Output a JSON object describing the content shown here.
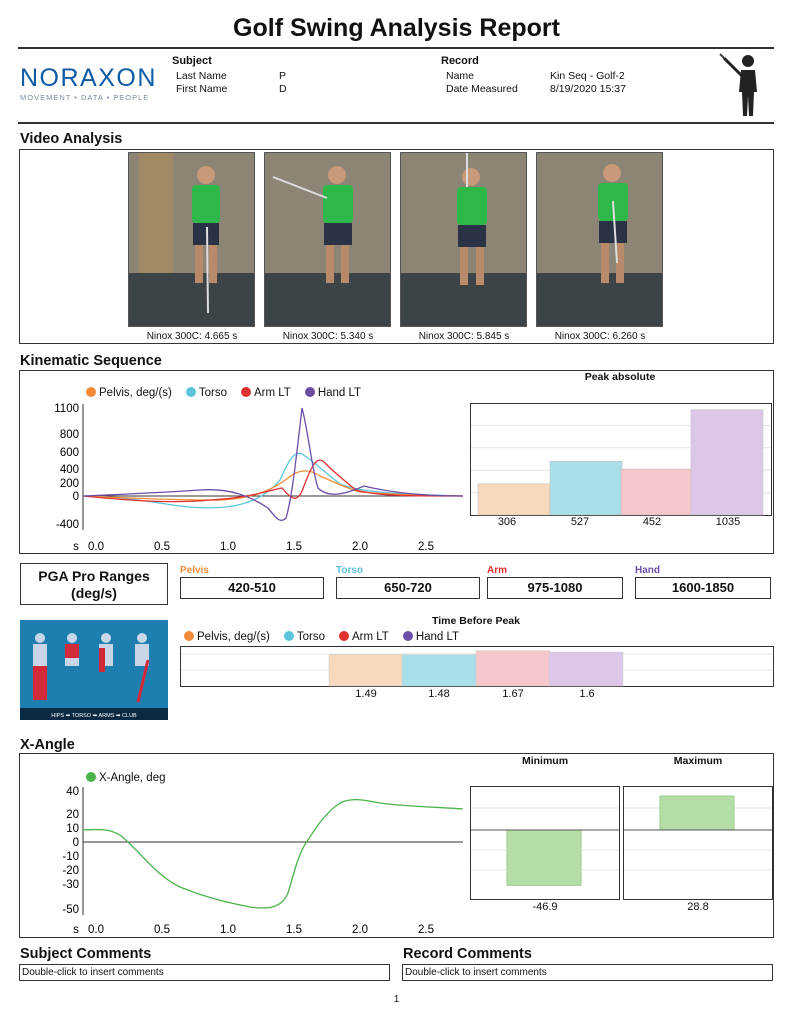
{
  "title": "Golf Swing Analysis Report",
  "logo": {
    "name": "NORAXON",
    "tagline": "MOVEMENT • DATA • PEOPLE"
  },
  "subject": {
    "heading": "Subject",
    "last_name_label": "Last Name",
    "last_name": "P",
    "first_name_label": "First Name",
    "first_name": "D"
  },
  "record": {
    "heading": "Record",
    "name_label": "Name",
    "name": "Kin Seq - Golf-2",
    "date_label": "Date Measured",
    "date": "8/19/2020 15:37"
  },
  "video": {
    "section": "Video Analysis",
    "captions": [
      "Ninox 300C: 4.665 s",
      "Ninox 300C: 5.340 s",
      "Ninox 300C: 5.845 s",
      "Ninox 300C: 6.260 s"
    ]
  },
  "kinematic": {
    "section": "Kinematic Sequence",
    "legend": [
      "Pelvis, deg/(s)",
      "Torso",
      "Arm LT",
      "Hand LT"
    ],
    "colors": [
      "#f28c38",
      "#5bc4dd",
      "#e2302f",
      "#6b4da8"
    ],
    "peak_title": "Peak absolute",
    "peak_values": [
      "306",
      "527",
      "452",
      "1035"
    ]
  },
  "kin_chart": {
    "type": "line",
    "x_ticks": [
      "0.0",
      "0.5",
      "1.0",
      "1.5",
      "2.0",
      "2.5"
    ],
    "x_unit": "s",
    "y_ticks": [
      "1100",
      "800",
      "600",
      "400",
      "200",
      "0",
      "-400"
    ]
  },
  "peak_chart": {
    "type": "bar",
    "values": [
      306,
      527,
      452,
      1035
    ],
    "ylim": [
      0,
      1100
    ],
    "colors": [
      "#f8d9bd",
      "#a9dfe8",
      "#f6c6cb",
      "#dcc7e8"
    ]
  },
  "pga": {
    "title_line1": "PGA Pro Ranges",
    "title_line2": "(deg/s)",
    "ranges": [
      {
        "label": "Pelvis",
        "value": "420-510",
        "color": "#f28c38"
      },
      {
        "label": "Torso",
        "value": "650-720",
        "color": "#5bc4dd"
      },
      {
        "label": "Arm",
        "value": "975-1080",
        "color": "#e2302f"
      },
      {
        "label": "Hand",
        "value": "1600-1850",
        "color": "#6b4da8"
      }
    ]
  },
  "timing": {
    "title": "Time Before Peak",
    "legend": [
      "Pelvis, deg/(s)",
      "Torso",
      "Arm LT",
      "Hand LT"
    ],
    "values": [
      "1.49",
      "1.48",
      "1.67",
      "1.6"
    ],
    "thumb_caption": "HIPS ➡ TORSO ➡ ARMS ➡ CLUB"
  },
  "timing_chart": {
    "type": "bar",
    "values": [
      1.49,
      1.48,
      1.67,
      1.6
    ]
  },
  "xangle": {
    "section": "X-Angle",
    "legend": "X-Angle, deg",
    "color": "#4ab34a",
    "min_title": "Minimum",
    "max_title": "Maximum",
    "min_value": "-46.9",
    "max_value": "28.8",
    "x_ticks": [
      "0.0",
      "0.5",
      "1.0",
      "1.5",
      "2.0",
      "2.5"
    ],
    "x_unit": "s",
    "y_ticks": [
      "40",
      "20",
      "10",
      "0",
      "-10",
      "-20",
      "-30",
      "-50"
    ]
  },
  "xangle_chart": {
    "type": "line",
    "ylim": [
      -50,
      40
    ],
    "min": -46.9,
    "max": 28.8
  },
  "comments": {
    "subject_title": "Subject Comments",
    "subject_text": "Double-click to insert comments",
    "record_title": "Record Comments",
    "record_text": "Double-click to insert comments"
  },
  "page_number": "1"
}
